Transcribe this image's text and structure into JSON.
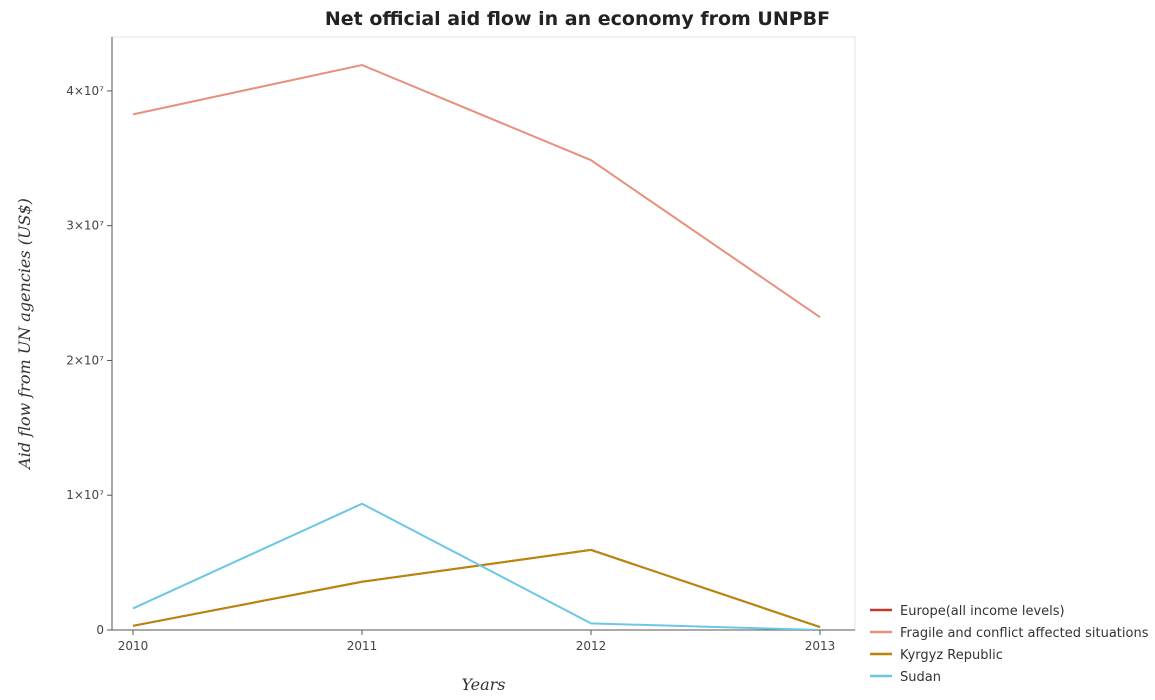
{
  "title": "Net official aid flow in an economy from UNPBF",
  "chart_data": {
    "type": "line",
    "title": "Net official aid flow in an economy from UNPBF",
    "xlabel": "Years",
    "ylabel": "Aid flow from UN agencies (US$)",
    "x": [
      "2010",
      "2011",
      "2012",
      "2013"
    ],
    "ylim": [
      0,
      44000000
    ],
    "yticks": [
      0,
      10000000,
      20000000,
      30000000,
      40000000
    ],
    "ytick_labels": [
      "0",
      "1×10⁷",
      "2×10⁷",
      "3×10⁷",
      "4×10⁷"
    ],
    "grid": false,
    "legend_position": "bottom-right",
    "series": [
      {
        "name": "Europe(all income levels)",
        "color": "#c0392b",
        "values": [
          310000,
          3580000,
          5940000,
          220000
        ]
      },
      {
        "name": "Fragile and conflict affected situations",
        "color": "#e8907e",
        "values": [
          38260000,
          41920000,
          34860000,
          23210000
        ]
      },
      {
        "name": "Kyrgyz Republic",
        "color": "#b8860b",
        "values": [
          310000,
          3580000,
          5940000,
          220000
        ]
      },
      {
        "name": "Sudan",
        "color": "#6cc6e6",
        "values": [
          1600000,
          9370000,
          490000,
          0
        ]
      }
    ]
  }
}
